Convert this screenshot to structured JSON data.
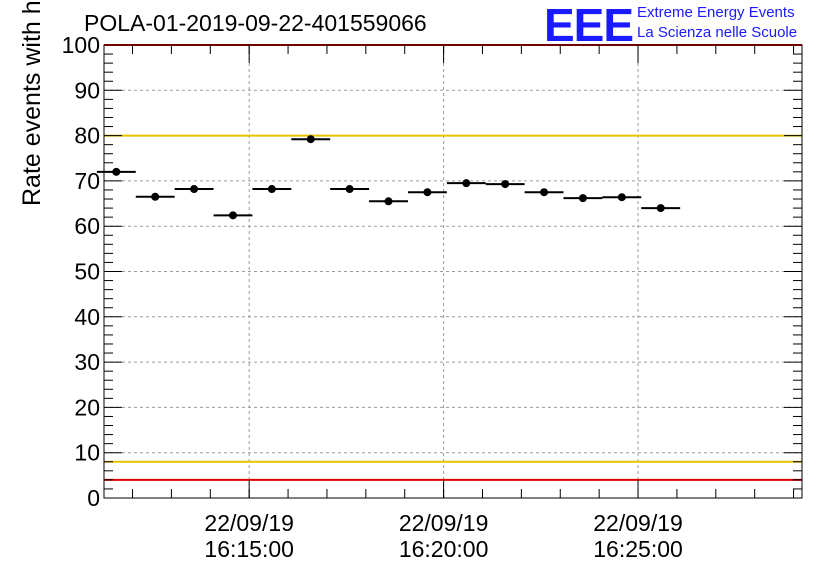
{
  "title": "POLA-01-2019-09-22-401559066",
  "logo": {
    "mark": "EEE",
    "line1": "Extreme Energy Events",
    "line2": "La Scienza nelle Scuole"
  },
  "colors": {
    "threshold_high": "#e00000",
    "threshold_warn": "#e6c200",
    "marker": "#000000",
    "grid": "#9a9a9a",
    "logo": "#1a1aff"
  },
  "chart_data": {
    "type": "scatter",
    "title": "POLA-01-2019-09-22-401559066",
    "xlabel": "",
    "ylabel": "Rate events with hits [Hz]",
    "ylim": [
      0,
      100
    ],
    "yticks": [
      0,
      10,
      20,
      30,
      40,
      50,
      60,
      70,
      80,
      90,
      100
    ],
    "xlim": [
      "2019-09-22 16:11:16",
      "2019-09-22 16:29:13"
    ],
    "xticks": [
      {
        "time": "2019-09-22 16:15:00",
        "date": "22/09/19",
        "clock": "16:15:00"
      },
      {
        "time": "2019-09-22 16:20:00",
        "date": "22/09/19",
        "clock": "16:20:00"
      },
      {
        "time": "2019-09-22 16:25:00",
        "date": "22/09/19",
        "clock": "16:25:00"
      }
    ],
    "grid": true,
    "points": [
      {
        "x": "2019-09-22 16:11:35",
        "y": 72.0,
        "x_half_width_s": 30
      },
      {
        "x": "2019-09-22 16:12:35",
        "y": 66.5,
        "x_half_width_s": 30
      },
      {
        "x": "2019-09-22 16:13:35",
        "y": 68.2,
        "x_half_width_s": 30
      },
      {
        "x": "2019-09-22 16:14:35",
        "y": 62.4,
        "x_half_width_s": 30
      },
      {
        "x": "2019-09-22 16:15:35",
        "y": 68.2,
        "x_half_width_s": 30
      },
      {
        "x": "2019-09-22 16:16:35",
        "y": 79.2,
        "x_half_width_s": 30
      },
      {
        "x": "2019-09-22 16:17:35",
        "y": 68.2,
        "x_half_width_s": 30
      },
      {
        "x": "2019-09-22 16:18:35",
        "y": 65.5,
        "x_half_width_s": 30
      },
      {
        "x": "2019-09-22 16:19:35",
        "y": 67.5,
        "x_half_width_s": 30
      },
      {
        "x": "2019-09-22 16:20:35",
        "y": 69.5,
        "x_half_width_s": 30
      },
      {
        "x": "2019-09-22 16:21:35",
        "y": 69.3,
        "x_half_width_s": 30
      },
      {
        "x": "2019-09-22 16:22:35",
        "y": 67.5,
        "x_half_width_s": 30
      },
      {
        "x": "2019-09-22 16:23:35",
        "y": 66.2,
        "x_half_width_s": 30
      },
      {
        "x": "2019-09-22 16:24:35",
        "y": 66.4,
        "x_half_width_s": 30
      },
      {
        "x": "2019-09-22 16:25:35",
        "y": 64.0,
        "x_half_width_s": 30
      }
    ],
    "reference_lines": [
      {
        "y": 100,
        "color": "#e00000"
      },
      {
        "y": 80,
        "color": "#e6c200"
      },
      {
        "y": 8,
        "color": "#e6c200"
      },
      {
        "y": 4,
        "color": "#e00000"
      }
    ]
  }
}
